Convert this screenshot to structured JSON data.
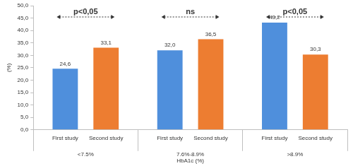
{
  "chart_data": {
    "type": "bar",
    "categories": [
      "<7.5%",
      "7.6%-8.9%",
      ">8.9%"
    ],
    "x_label": "HbA1c (%)",
    "y_label": "(%)",
    "series": [
      {
        "name": "First study",
        "color": "#4f8fdc",
        "values": [
          24.6,
          32.0,
          43.2
        ],
        "value_labels": [
          "24,6",
          "32,0",
          "43,2"
        ]
      },
      {
        "name": "Second study",
        "color": "#ed7d31",
        "values": [
          33.1,
          36.5,
          30.3
        ],
        "value_labels": [
          "33,1",
          "36,5",
          "30,3"
        ]
      }
    ],
    "ylim": [
      0,
      50
    ],
    "yticks": [
      {
        "value": 0,
        "label": "0,0"
      },
      {
        "value": 5,
        "label": "5,0"
      },
      {
        "value": 10,
        "label": "10,0"
      },
      {
        "value": 15,
        "label": "15,0"
      },
      {
        "value": 20,
        "label": "20,0"
      },
      {
        "value": 25,
        "label": "25,0"
      },
      {
        "value": 30,
        "label": "30,0"
      },
      {
        "value": 35,
        "label": "35,0"
      },
      {
        "value": 40,
        "label": "40,0"
      },
      {
        "value": 45,
        "label": "45,0"
      },
      {
        "value": 50,
        "label": "50,0"
      }
    ],
    "annotations": [
      {
        "text": "p<0,05",
        "category": "<7.5%"
      },
      {
        "text": "ns",
        "category": "7.6%-8.9%"
      },
      {
        "text": "p<0,05",
        "category": ">8.9%"
      }
    ],
    "grid": false,
    "data_labels": true
  }
}
